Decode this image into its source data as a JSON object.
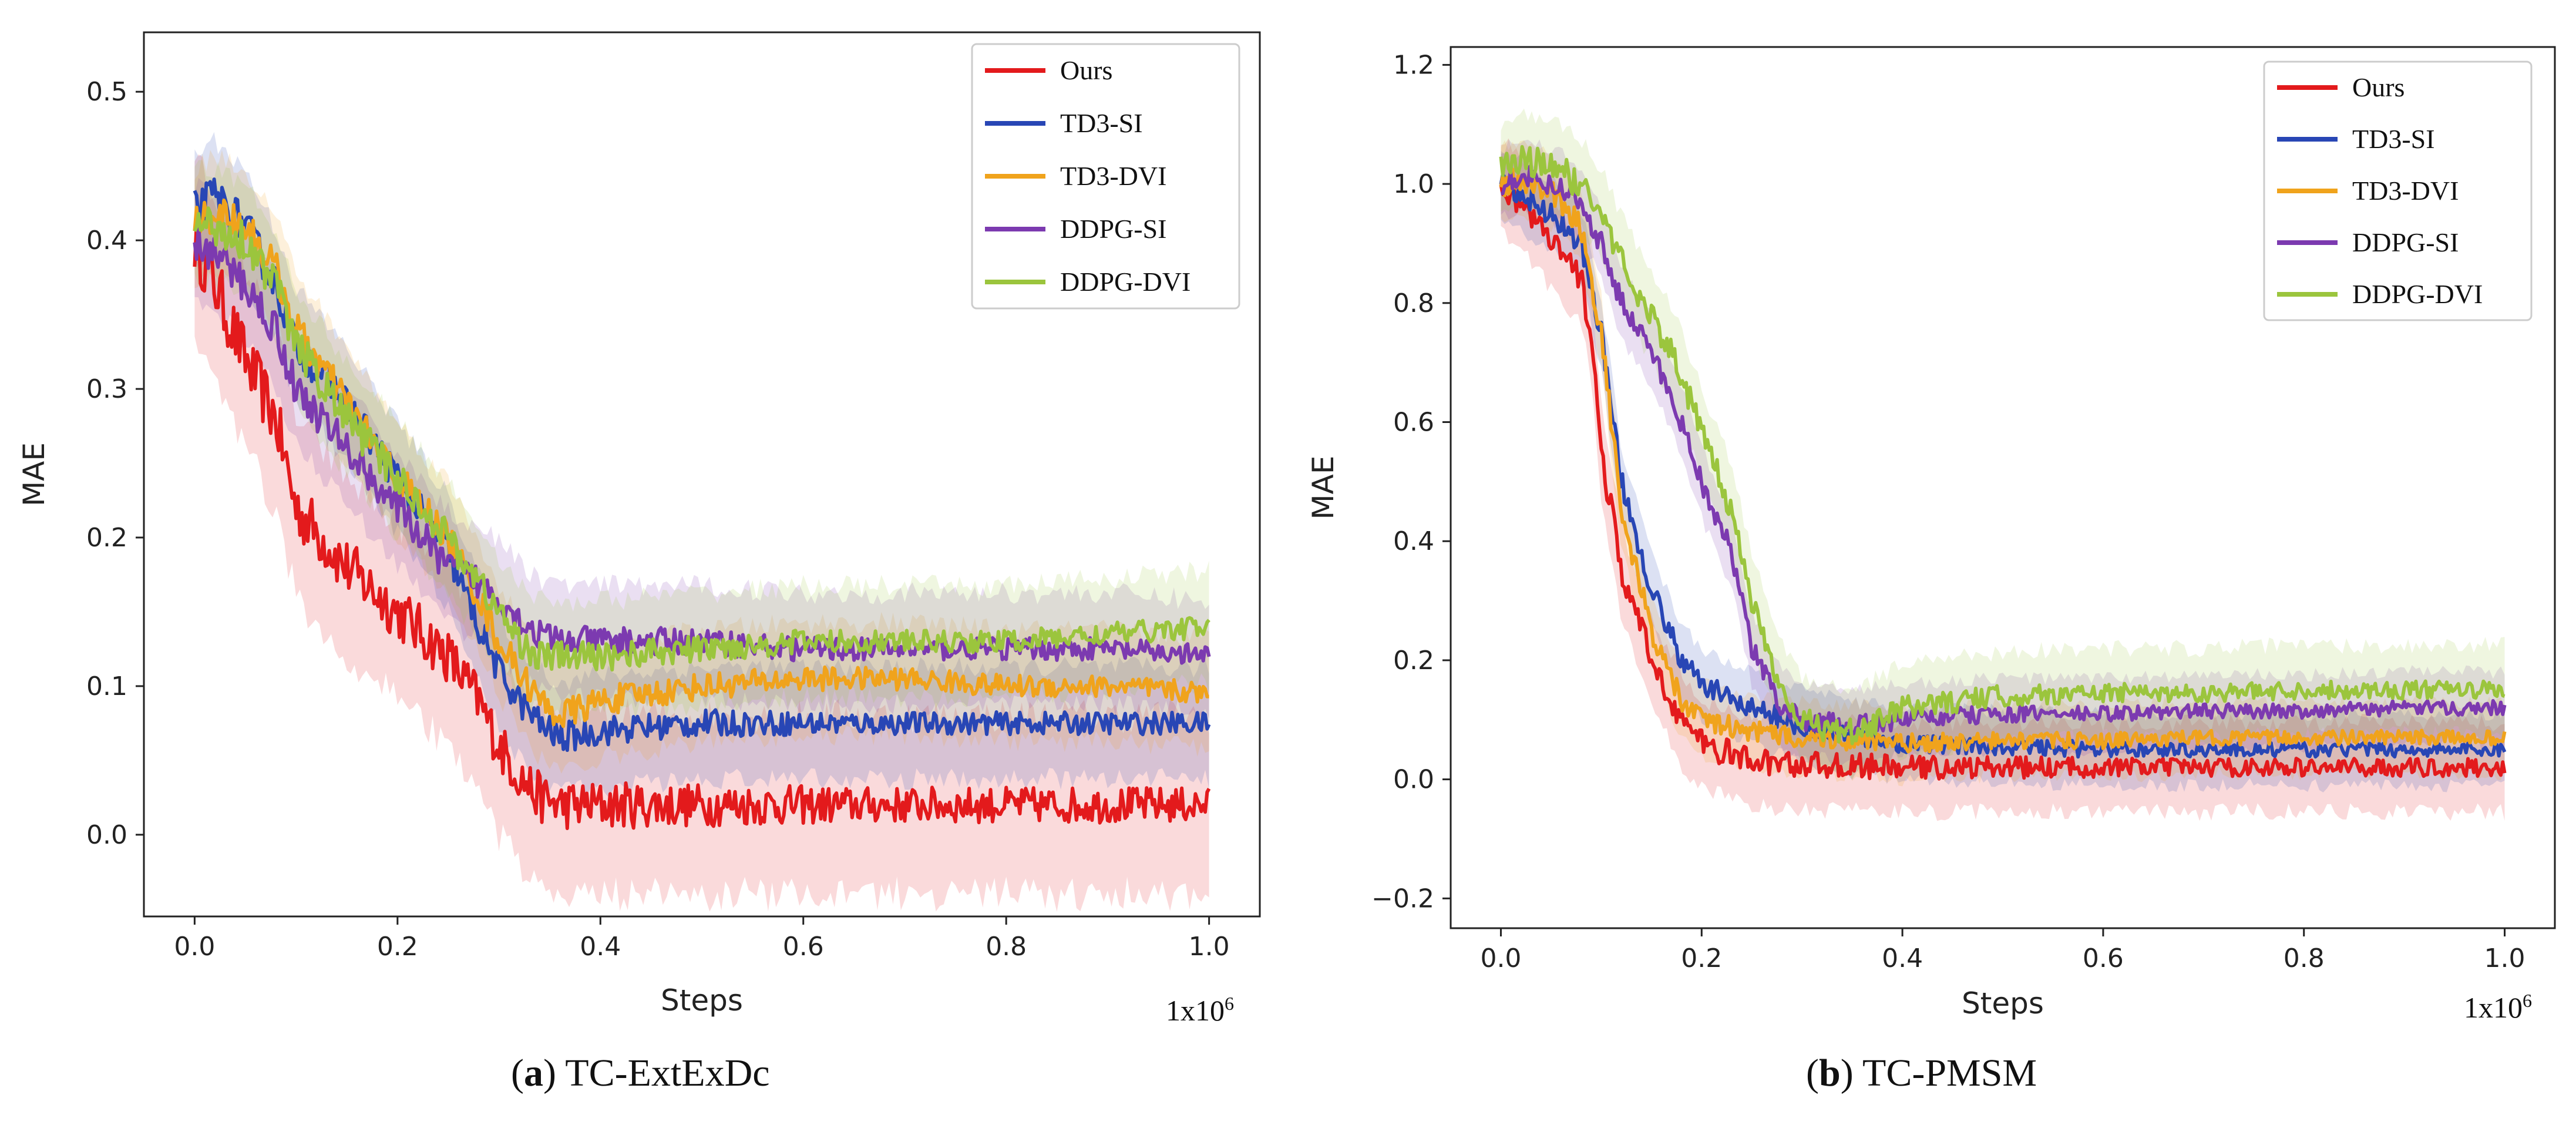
{
  "chart_data": [
    {
      "type": "line",
      "panel_letter": "a",
      "caption": "TC-ExtExDc",
      "xlabel": "Steps",
      "ylabel": "MAE",
      "multiplier": "1x10",
      "multiplier_exp": "6",
      "xlim": [
        -0.05,
        1.05
      ],
      "ylim": [
        -0.055,
        0.54
      ],
      "xticks": [
        0.0,
        0.2,
        0.4,
        0.6,
        0.8,
        1.0
      ],
      "xtick_labels": [
        "0.0",
        "0.2",
        "0.4",
        "0.6",
        "0.8",
        "1.0"
      ],
      "yticks": [
        0.0,
        0.1,
        0.2,
        0.3,
        0.4,
        0.5
      ],
      "ytick_labels": [
        "0.0",
        "0.1",
        "0.2",
        "0.3",
        "0.4",
        "0.5"
      ],
      "legend_position": "top-right",
      "series": [
        {
          "name": "Ours",
          "color": "#e31a1c",
          "band": 0.04,
          "x": [
            0.0,
            0.02,
            0.05,
            0.08,
            0.1,
            0.15,
            0.2,
            0.25,
            0.28,
            0.3,
            0.32,
            0.34,
            0.36,
            0.4,
            0.5,
            0.6,
            0.7,
            0.8,
            0.9,
            1.0
          ],
          "y": [
            0.4,
            0.37,
            0.32,
            0.28,
            0.22,
            0.18,
            0.15,
            0.12,
            0.09,
            0.06,
            0.04,
            0.025,
            0.02,
            0.02,
            0.02,
            0.02,
            0.02,
            0.02,
            0.02,
            0.02
          ]
        },
        {
          "name": "TD3-SI",
          "color": "#2846b5",
          "band": 0.025,
          "x": [
            0.0,
            0.02,
            0.05,
            0.08,
            0.1,
            0.15,
            0.2,
            0.25,
            0.28,
            0.3,
            0.32,
            0.34,
            0.36,
            0.4,
            0.5,
            0.6,
            0.7,
            0.8,
            0.9,
            1.0
          ],
          "y": [
            0.42,
            0.43,
            0.41,
            0.37,
            0.33,
            0.29,
            0.24,
            0.19,
            0.14,
            0.11,
            0.09,
            0.075,
            0.065,
            0.07,
            0.075,
            0.075,
            0.075,
            0.075,
            0.075,
            0.075
          ]
        },
        {
          "name": "TD3-DVI",
          "color": "#f0a31c",
          "band": 0.025,
          "x": [
            0.0,
            0.02,
            0.05,
            0.08,
            0.1,
            0.15,
            0.2,
            0.25,
            0.28,
            0.3,
            0.32,
            0.34,
            0.36,
            0.4,
            0.5,
            0.6,
            0.7,
            0.8,
            0.9,
            1.0
          ],
          "y": [
            0.41,
            0.42,
            0.41,
            0.38,
            0.34,
            0.29,
            0.24,
            0.2,
            0.16,
            0.13,
            0.11,
            0.09,
            0.08,
            0.09,
            0.1,
            0.105,
            0.105,
            0.1,
            0.1,
            0.095
          ]
        },
        {
          "name": "DDPG-SI",
          "color": "#7c3ab0",
          "band": 0.025,
          "x": [
            0.0,
            0.02,
            0.05,
            0.08,
            0.1,
            0.15,
            0.2,
            0.25,
            0.28,
            0.3,
            0.32,
            0.34,
            0.36,
            0.4,
            0.5,
            0.6,
            0.7,
            0.8,
            0.9,
            1.0
          ],
          "y": [
            0.4,
            0.39,
            0.37,
            0.34,
            0.3,
            0.26,
            0.22,
            0.18,
            0.17,
            0.16,
            0.145,
            0.135,
            0.13,
            0.13,
            0.13,
            0.125,
            0.125,
            0.125,
            0.125,
            0.12
          ]
        },
        {
          "name": "DDPG-DVI",
          "color": "#9bc53d",
          "band": 0.025,
          "x": [
            0.0,
            0.02,
            0.05,
            0.08,
            0.1,
            0.15,
            0.2,
            0.25,
            0.28,
            0.3,
            0.32,
            0.34,
            0.36,
            0.4,
            0.5,
            0.6,
            0.7,
            0.8,
            0.9,
            1.0
          ],
          "y": [
            0.41,
            0.41,
            0.4,
            0.37,
            0.33,
            0.28,
            0.24,
            0.2,
            0.17,
            0.15,
            0.13,
            0.12,
            0.12,
            0.12,
            0.125,
            0.13,
            0.13,
            0.13,
            0.135,
            0.14
          ]
        }
      ]
    },
    {
      "type": "line",
      "panel_letter": "b",
      "caption": "TC-PMSM",
      "xlabel": "Steps",
      "ylabel": "MAE",
      "multiplier": "1x10",
      "multiplier_exp": "6",
      "xlim": [
        -0.05,
        1.05
      ],
      "ylim": [
        -0.25,
        1.23
      ],
      "xticks": [
        0.0,
        0.2,
        0.4,
        0.6,
        0.8,
        1.0
      ],
      "xtick_labels": [
        "0.0",
        "0.2",
        "0.4",
        "0.6",
        "0.8",
        "1.0"
      ],
      "yticks": [
        -0.2,
        0.0,
        0.2,
        0.4,
        0.6,
        0.8,
        1.0,
        1.2
      ],
      "ytick_labels": [
        "−0.2",
        "0.0",
        "0.2",
        "0.4",
        "0.6",
        "0.8",
        "1.0",
        "1.2"
      ],
      "legend_position": "top-right",
      "series": [
        {
          "name": "Ours",
          "color": "#e31a1c",
          "band": 0.05,
          "x": [
            0.0,
            0.02,
            0.05,
            0.08,
            0.09,
            0.1,
            0.12,
            0.15,
            0.18,
            0.2,
            0.25,
            0.3,
            0.4,
            0.5,
            0.6,
            0.7,
            0.8,
            0.9,
            1.0
          ],
          "y": [
            1.0,
            0.97,
            0.9,
            0.84,
            0.75,
            0.55,
            0.35,
            0.2,
            0.1,
            0.06,
            0.03,
            0.025,
            0.02,
            0.02,
            0.02,
            0.02,
            0.02,
            0.02,
            0.02
          ]
        },
        {
          "name": "TD3-SI",
          "color": "#2846b5",
          "band": 0.04,
          "x": [
            0.0,
            0.02,
            0.05,
            0.08,
            0.1,
            0.12,
            0.15,
            0.18,
            0.2,
            0.25,
            0.3,
            0.35,
            0.4,
            0.5,
            0.6,
            0.7,
            0.8,
            0.9,
            1.0
          ],
          "y": [
            1.0,
            0.98,
            0.95,
            0.9,
            0.75,
            0.5,
            0.32,
            0.2,
            0.16,
            0.12,
            0.09,
            0.07,
            0.06,
            0.055,
            0.05,
            0.05,
            0.05,
            0.05,
            0.05
          ]
        },
        {
          "name": "TD3-DVI",
          "color": "#f0a31c",
          "band": 0.04,
          "x": [
            0.0,
            0.02,
            0.05,
            0.08,
            0.1,
            0.12,
            0.15,
            0.18,
            0.2,
            0.25,
            0.3,
            0.35,
            0.4,
            0.5,
            0.6,
            0.7,
            0.8,
            0.9,
            1.0
          ],
          "y": [
            1.0,
            1.01,
            0.99,
            0.93,
            0.75,
            0.45,
            0.25,
            0.13,
            0.1,
            0.08,
            0.07,
            0.065,
            0.06,
            0.065,
            0.065,
            0.07,
            0.07,
            0.07,
            0.07
          ]
        },
        {
          "name": "DDPG-SI",
          "color": "#7c3ab0",
          "band": 0.04,
          "x": [
            0.0,
            0.02,
            0.05,
            0.08,
            0.1,
            0.12,
            0.15,
            0.18,
            0.2,
            0.23,
            0.25,
            0.28,
            0.3,
            0.35,
            0.4,
            0.5,
            0.6,
            0.7,
            0.8,
            0.9,
            1.0
          ],
          "y": [
            1.0,
            1.02,
            1.0,
            0.97,
            0.9,
            0.8,
            0.72,
            0.6,
            0.5,
            0.38,
            0.22,
            0.12,
            0.1,
            0.09,
            0.1,
            0.11,
            0.11,
            0.115,
            0.115,
            0.12,
            0.12
          ]
        },
        {
          "name": "DDPG-DVI",
          "color": "#9bc53d",
          "band": 0.05,
          "x": [
            0.0,
            0.02,
            0.05,
            0.08,
            0.1,
            0.12,
            0.15,
            0.18,
            0.2,
            0.23,
            0.25,
            0.28,
            0.3,
            0.33,
            0.36,
            0.4,
            0.5,
            0.6,
            0.7,
            0.8,
            0.9,
            1.0
          ],
          "y": [
            1.02,
            1.04,
            1.03,
            1.0,
            0.95,
            0.87,
            0.78,
            0.68,
            0.58,
            0.45,
            0.3,
            0.15,
            0.1,
            0.08,
            0.08,
            0.12,
            0.14,
            0.145,
            0.145,
            0.15,
            0.15,
            0.15
          ]
        }
      ]
    }
  ]
}
